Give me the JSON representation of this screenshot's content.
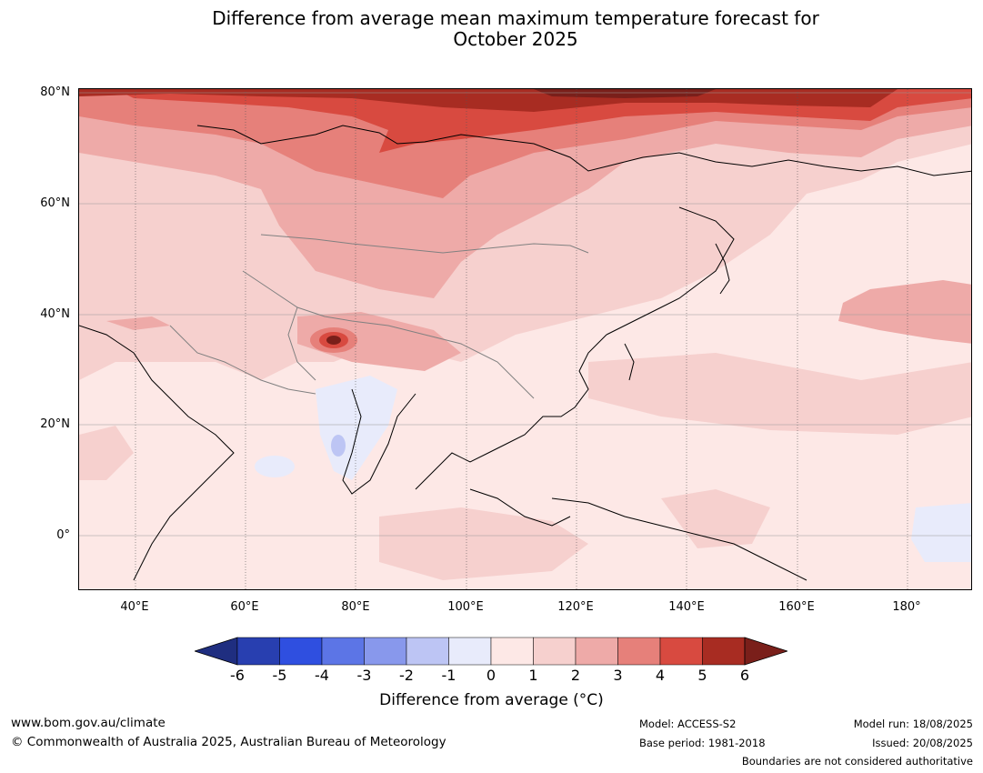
{
  "title": {
    "line1": "Difference from average mean maximum temperature forecast for",
    "line2": "October 2025"
  },
  "axes": {
    "lat_labels": [
      "80°N",
      "60°N",
      "40°N",
      "20°N",
      "0°"
    ],
    "lon_labels": [
      "40°E",
      "60°E",
      "80°E",
      "100°E",
      "120°E",
      "140°E",
      "160°E",
      "180°"
    ]
  },
  "colorbar": {
    "ticks": [
      "-6",
      "-5",
      "-4",
      "-3",
      "-2",
      "-1",
      "0",
      "1",
      "2",
      "3",
      "4",
      "5",
      "6"
    ],
    "colors": [
      "#1f2e80",
      "#283fb0",
      "#2f4fe0",
      "#5c75e6",
      "#8898ec",
      "#bdc5f4",
      "#e8ebfb",
      "#fde8e6",
      "#f6d0ce",
      "#eeaaa8",
      "#e6807a",
      "#d84a40",
      "#a82c22",
      "#7a1f1a"
    ],
    "label": "Difference from average (°C)"
  },
  "footer": {
    "website": "www.bom.gov.au/climate",
    "copyright": "© Commonwealth of Australia 2025, Australian Bureau of Meteorology",
    "model": "Model: ACCESS-S2",
    "base_period": "Base period: 1981-2018",
    "model_run": "Model run: 18/08/2025",
    "issued": "Issued: 20/08/2025",
    "disclaimer": "Boundaries are not considered authoritative"
  }
}
